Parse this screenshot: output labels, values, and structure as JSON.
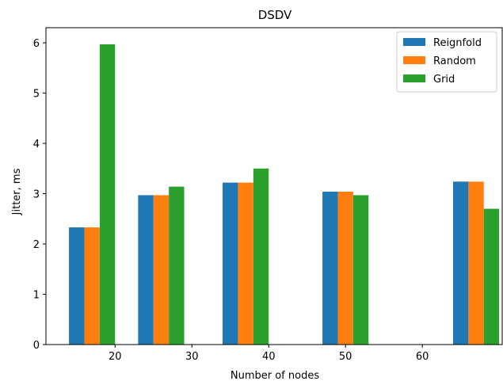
{
  "chart_data": {
    "type": "bar",
    "title": "DSDV",
    "xlabel": "Number of nodes",
    "ylabel": "Jitter, ms",
    "x_ticks": [
      20,
      30,
      40,
      50,
      60
    ],
    "y_ticks": [
      0,
      1,
      2,
      3,
      4,
      5,
      6
    ],
    "xlim": [
      11,
      70.4
    ],
    "ylim": [
      0,
      6.3
    ],
    "grid": false,
    "legend_position": "top-right",
    "groups": [
      {
        "values": [
          2.33,
          2.33,
          5.97
        ],
        "x_start": 14
      },
      {
        "values": [
          2.97,
          2.97,
          3.14
        ],
        "x_start": 23
      },
      {
        "values": [
          3.22,
          3.22,
          3.5
        ],
        "x_start": 34
      },
      {
        "values": [
          3.04,
          3.04,
          2.97
        ],
        "x_start": 47
      },
      {
        "values": [
          3.24,
          3.24,
          2.7
        ],
        "x_start": 64
      }
    ],
    "bar_width_units": 2,
    "series": [
      {
        "name": "Reignfold",
        "color": "#1f77b4",
        "values": [
          2.33,
          2.97,
          3.22,
          3.04,
          3.24
        ]
      },
      {
        "name": "Random",
        "color": "#ff7f0e",
        "values": [
          2.33,
          2.97,
          3.22,
          3.04,
          3.24
        ]
      },
      {
        "name": "Grid",
        "color": "#2ca02c",
        "values": [
          5.97,
          3.14,
          3.5,
          2.97,
          2.7
        ]
      }
    ]
  }
}
